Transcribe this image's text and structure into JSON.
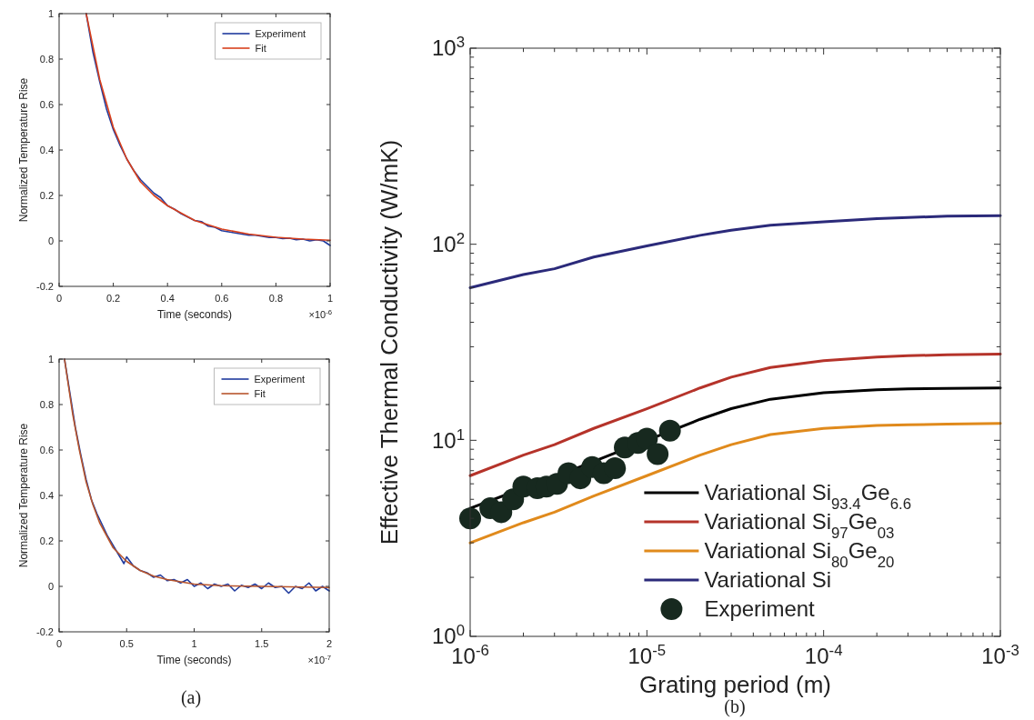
{
  "chart_data": [
    {
      "type": "line",
      "xlabel": "Time (seconds)",
      "ylabel": "Normalized Temperature Rise",
      "xlim": [
        0,
        1
      ],
      "ylim": [
        -0.2,
        1
      ],
      "xticks": [
        0,
        0.2,
        0.4,
        0.6,
        0.8,
        1
      ],
      "yticks": [
        -0.2,
        0,
        0.2,
        0.4,
        0.6,
        0.8,
        1
      ],
      "legend": "top right",
      "grid": false,
      "marker": "none",
      "annotations": [
        "×10$^{-6}$"
      ],
      "series": [
        {
          "name": "Experiment",
          "color": "#1f3a9e",
          "x": [
            0.1,
            0.125,
            0.15,
            0.175,
            0.2,
            0.225,
            0.25,
            0.275,
            0.3,
            0.325,
            0.35,
            0.375,
            0.4,
            0.425,
            0.45,
            0.475,
            0.5,
            0.525,
            0.55,
            0.575,
            0.6,
            0.625,
            0.65,
            0.675,
            0.7,
            0.725,
            0.75,
            0.775,
            0.8,
            0.825,
            0.85,
            0.875,
            0.9,
            0.925,
            0.95,
            0.975,
            1.0
          ],
          "values": [
            1.0,
            0.83,
            0.7,
            0.58,
            0.49,
            0.42,
            0.36,
            0.31,
            0.27,
            0.24,
            0.21,
            0.19,
            0.155,
            0.14,
            0.12,
            0.105,
            0.09,
            0.085,
            0.065,
            0.06,
            0.045,
            0.04,
            0.035,
            0.03,
            0.025,
            0.025,
            0.02,
            0.015,
            0.015,
            0.01,
            0.012,
            0.005,
            0.008,
            0.0,
            0.005,
            0.0,
            -0.02
          ]
        },
        {
          "name": "Fit",
          "color": "#d9401c",
          "x": [
            0.1,
            0.15,
            0.2,
            0.25,
            0.3,
            0.35,
            0.4,
            0.5,
            0.6,
            0.7,
            0.8,
            0.9,
            1.0
          ],
          "values": [
            1.0,
            0.71,
            0.5,
            0.36,
            0.26,
            0.2,
            0.155,
            0.09,
            0.052,
            0.03,
            0.016,
            0.008,
            0.003
          ]
        }
      ]
    },
    {
      "type": "line",
      "xlabel": "Time (seconds)",
      "ylabel": "Normalized Temperature Rise",
      "xlim": [
        0,
        2
      ],
      "ylim": [
        -0.2,
        1
      ],
      "xticks": [
        0,
        0.5,
        1,
        1.5,
        2
      ],
      "yticks": [
        -0.2,
        0,
        0.2,
        0.4,
        0.6,
        0.8,
        1
      ],
      "legend": "top right",
      "grid": false,
      "marker": "none",
      "annotations": [
        "×10$^{-7}$",
        "(a)"
      ],
      "series": [
        {
          "name": "Experiment",
          "color": "#1f3a9e",
          "x": [
            0.04,
            0.08,
            0.12,
            0.16,
            0.2,
            0.24,
            0.28,
            0.32,
            0.36,
            0.4,
            0.45,
            0.48,
            0.5,
            0.55,
            0.6,
            0.65,
            0.7,
            0.75,
            0.8,
            0.85,
            0.9,
            0.95,
            1.0,
            1.05,
            1.1,
            1.15,
            1.2,
            1.25,
            1.3,
            1.35,
            1.4,
            1.45,
            1.5,
            1.55,
            1.6,
            1.65,
            1.7,
            1.75,
            1.8,
            1.85,
            1.9,
            1.95,
            2.0
          ],
          "values": [
            1.0,
            0.85,
            0.7,
            0.58,
            0.47,
            0.38,
            0.32,
            0.27,
            0.22,
            0.18,
            0.13,
            0.1,
            0.13,
            0.09,
            0.07,
            0.06,
            0.04,
            0.05,
            0.025,
            0.03,
            0.015,
            0.03,
            0.0,
            0.015,
            -0.01,
            0.01,
            0.0,
            0.01,
            -0.02,
            0.005,
            -0.005,
            0.01,
            -0.01,
            0.015,
            -0.005,
            0.0,
            -0.03,
            0.0,
            -0.01,
            0.015,
            -0.02,
            0.0,
            -0.02
          ]
        },
        {
          "name": "Fit",
          "color": "#b8552c",
          "x": [
            0.04,
            0.1,
            0.15,
            0.2,
            0.25,
            0.3,
            0.4,
            0.5,
            0.6,
            0.7,
            0.8,
            1.0,
            1.2,
            1.5,
            2.0
          ],
          "values": [
            1.0,
            0.76,
            0.6,
            0.46,
            0.36,
            0.28,
            0.17,
            0.11,
            0.07,
            0.045,
            0.03,
            0.01,
            0.003,
            0.0,
            -0.005
          ]
        }
      ]
    },
    {
      "type": "line",
      "xlabel": "Grating period (m)",
      "ylabel": "Effective Thermal Conductivity (W/mK)",
      "log": "xy",
      "xlim": [
        1e-06,
        0.001
      ],
      "ylim": [
        1,
        1000
      ],
      "xticks": [
        {
          "value": 1e-06,
          "label": "10$^{-6}$"
        },
        {
          "value": 2e-06,
          "label": null
        },
        {
          "value": 3e-06,
          "label": null
        },
        {
          "value": 4e-06,
          "label": null
        },
        {
          "value": 5e-06,
          "label": null
        },
        {
          "value": 6e-06,
          "label": null
        },
        {
          "value": 7e-06,
          "label": null
        },
        {
          "value": 8e-06,
          "label": null
        },
        {
          "value": 9e-06,
          "label": null
        },
        {
          "value": 1e-05,
          "label": "10$^{-5}$"
        },
        {
          "value": 2e-05,
          "label": null
        },
        {
          "value": 3e-05,
          "label": null
        },
        {
          "value": 4e-05,
          "label": null
        },
        {
          "value": 5e-05,
          "label": null
        },
        {
          "value": 6e-05,
          "label": null
        },
        {
          "value": 7e-05,
          "label": null
        },
        {
          "value": 8e-05,
          "label": null
        },
        {
          "value": 9e-05,
          "label": null
        },
        {
          "value": 0.0001,
          "label": "10$^{-4}$"
        },
        {
          "value": 0.0002,
          "label": null
        },
        {
          "value": 0.0003,
          "label": null
        },
        {
          "value": 0.0004,
          "label": null
        },
        {
          "value": 0.0005,
          "label": null
        },
        {
          "value": 0.0006,
          "label": null
        },
        {
          "value": 0.0007,
          "label": null
        },
        {
          "value": 0.0008,
          "label": null
        },
        {
          "value": 0.0009,
          "label": null
        },
        {
          "value": 0.001,
          "label": "10$^{-3}$"
        }
      ],
      "yticks": [
        {
          "value": 1,
          "label": "10$^{0}$"
        },
        {
          "value": 2,
          "label": null
        },
        {
          "value": 3,
          "label": null
        },
        {
          "value": 4,
          "label": null
        },
        {
          "value": 5,
          "label": null
        },
        {
          "value": 6,
          "label": null
        },
        {
          "value": 7,
          "label": null
        },
        {
          "value": 8,
          "label": null
        },
        {
          "value": 9,
          "label": null
        },
        {
          "value": 10,
          "label": "10$^{1}$"
        },
        {
          "value": 20,
          "label": null
        },
        {
          "value": 30,
          "label": null
        },
        {
          "value": 40,
          "label": null
        },
        {
          "value": 50,
          "label": null
        },
        {
          "value": 60,
          "label": null
        },
        {
          "value": 70,
          "label": null
        },
        {
          "value": 80,
          "label": null
        },
        {
          "value": 90,
          "label": null
        },
        {
          "value": 100,
          "label": "10$^{2}$"
        },
        {
          "value": 200,
          "label": null
        },
        {
          "value": 300,
          "label": null
        },
        {
          "value": 400,
          "label": null
        },
        {
          "value": 500,
          "label": null
        },
        {
          "value": 600,
          "label": null
        },
        {
          "value": 700,
          "label": null
        },
        {
          "value": 800,
          "label": null
        },
        {
          "value": 900,
          "label": null
        },
        {
          "value": 1000,
          "label": "10$^{3}$"
        }
      ],
      "legend": "bottom right",
      "grid": false,
      "marker": "none",
      "annotations": [
        "(b)"
      ],
      "series": [
        {
          "name": "Variational Si$_{93.4}$Ge$_{6.6}$",
          "color": "#000000",
          "x": [
            1e-06,
            2e-06,
            3e-06,
            5e-06,
            1e-05,
            2e-05,
            3e-05,
            5e-05,
            0.0001,
            0.0002,
            0.0003,
            0.0005,
            0.001
          ],
          "values": [
            4.5,
            5.7,
            6.5,
            7.8,
            10,
            12.8,
            14.5,
            16.2,
            17.5,
            18.1,
            18.3,
            18.4,
            18.5
          ]
        },
        {
          "name": "Variational Si$_{97}$Ge$_{03}$",
          "color": "#b5332a",
          "x": [
            1e-06,
            2e-06,
            3e-06,
            5e-06,
            1e-05,
            2e-05,
            3e-05,
            5e-05,
            0.0001,
            0.0002,
            0.0003,
            0.0005,
            0.001
          ],
          "values": [
            6.6,
            8.4,
            9.5,
            11.5,
            14.5,
            18.5,
            21,
            23.5,
            25.5,
            26.6,
            27,
            27.3,
            27.5
          ]
        },
        {
          "name": "Variational Si$_{80}$Ge$_{20}$",
          "color": "#e08a1c",
          "x": [
            1e-06,
            2e-06,
            3e-06,
            5e-06,
            1e-05,
            2e-05,
            3e-05,
            5e-05,
            0.0001,
            0.0002,
            0.0003,
            0.0005,
            0.001
          ],
          "values": [
            3.0,
            3.8,
            4.3,
            5.2,
            6.6,
            8.4,
            9.5,
            10.7,
            11.5,
            11.9,
            12,
            12.1,
            12.2
          ]
        },
        {
          "name": "Variational Si",
          "color": "#2b2a7a",
          "x": [
            1e-06,
            2e-06,
            3e-06,
            5e-06,
            1e-05,
            2e-05,
            3e-05,
            5e-05,
            0.0001,
            0.0002,
            0.0003,
            0.0005,
            0.001
          ],
          "values": [
            60,
            70,
            75,
            86,
            98,
            111,
            118,
            125,
            130,
            135,
            137,
            139,
            140
          ]
        },
        {
          "name": "Experiment",
          "type": "scatter",
          "marker": "circle",
          "color": "#17291f",
          "x": [
            1e-06,
            1.3e-06,
            1.5e-06,
            1.75e-06,
            2e-06,
            2.4e-06,
            2.7e-06,
            3.1e-06,
            3.6e-06,
            4.2e-06,
            4.9e-06,
            5.7e-06,
            6.6e-06,
            7.5e-06,
            8.9e-06,
            1e-05,
            1.15e-05,
            1.35e-05
          ],
          "values": [
            4.0,
            4.5,
            4.3,
            5.0,
            5.8,
            5.7,
            5.8,
            6.0,
            6.8,
            6.4,
            7.3,
            6.8,
            7.2,
            9.2,
            9.7,
            10.2,
            8.5,
            11.2
          ]
        }
      ]
    }
  ]
}
